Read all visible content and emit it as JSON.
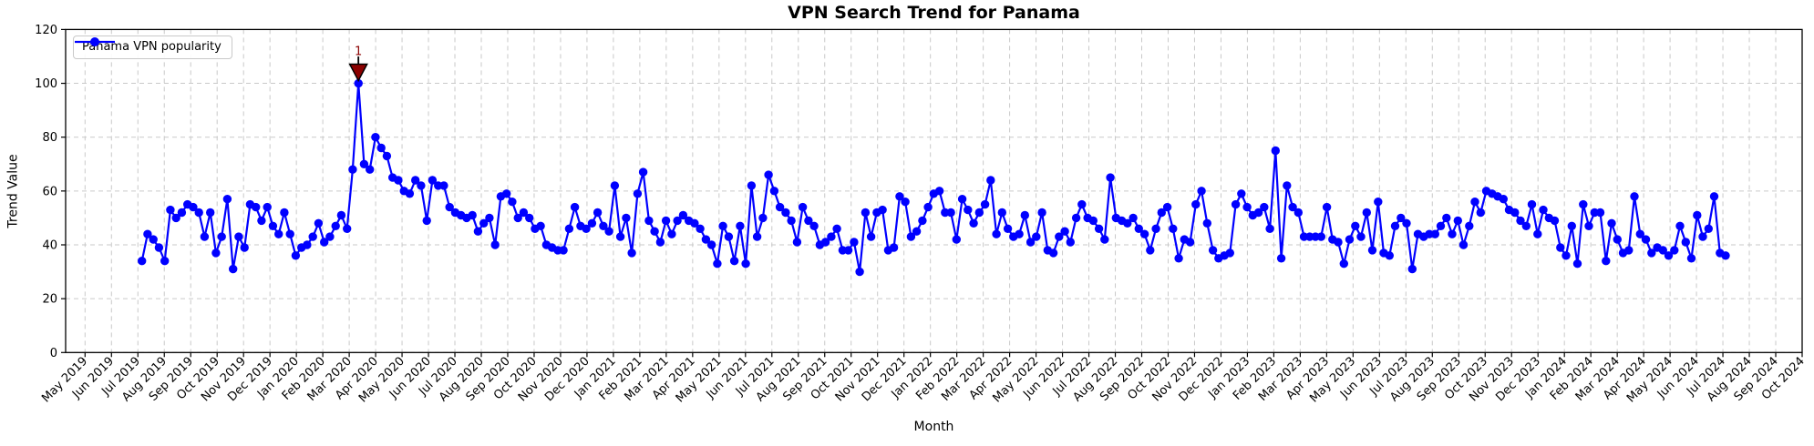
{
  "title": "VPN Search Trend for Panama",
  "axes": {
    "x_label": "Month",
    "y_label": "Trend Value"
  },
  "legend": {
    "label": "Panama VPN popularity"
  },
  "colors": {
    "line": "#0000ff",
    "annotation": "#8b0000",
    "annotation_edge": "#000000",
    "grid": "#c9c9c9",
    "spine": "#000000",
    "background": "#ffffff",
    "text": "#000000"
  },
  "chart_data": {
    "type": "line",
    "title": "VPN Search Trend for Panama",
    "xlabel": "Month",
    "ylabel": "Trend Value",
    "ylim": [
      0,
      120
    ],
    "y_ticks": [
      0,
      20,
      40,
      60,
      80,
      100,
      120
    ],
    "grid": true,
    "legend_position": "upper left",
    "x_tick_labels": [
      "May 2019",
      "Jun 2019",
      "Jul 2019",
      "Aug 2019",
      "Sep 2019",
      "Oct 2019",
      "Nov 2019",
      "Dec 2019",
      "Jan 2020",
      "Feb 2020",
      "Mar 2020",
      "Apr 2020",
      "May 2020",
      "Jun 2020",
      "Jul 2020",
      "Aug 2020",
      "Sep 2020",
      "Oct 2020",
      "Nov 2020",
      "Dec 2020",
      "Jan 2021",
      "Feb 2021",
      "Mar 2021",
      "Apr 2021",
      "May 2021",
      "Jun 2021",
      "Jul 2021",
      "Aug 2021",
      "Sep 2021",
      "Oct 2021",
      "Nov 2021",
      "Dec 2021",
      "Jan 2022",
      "Feb 2022",
      "Mar 2022",
      "Apr 2022",
      "May 2022",
      "Jun 2022",
      "Jul 2022",
      "Aug 2022",
      "Sep 2022",
      "Oct 2022",
      "Nov 2022",
      "Dec 2022",
      "Jan 2023",
      "Feb 2023",
      "Mar 2023",
      "Apr 2023",
      "May 2023",
      "Jun 2023",
      "Jul 2023",
      "Aug 2023",
      "Sep 2023",
      "Oct 2023",
      "Nov 2023",
      "Dec 2023",
      "Jan 2024",
      "Feb 2024",
      "Mar 2024",
      "Apr 2024",
      "May 2024",
      "Jun 2024",
      "Jul 2024",
      "Aug 2024",
      "Sep 2024",
      "Oct 2024"
    ],
    "series": [
      {
        "name": "Panama VPN popularity",
        "color": "#0000ff",
        "marker": "circle",
        "interval": "weekly",
        "first_point": "Jul 2019",
        "last_point": "Jul 2024",
        "values": [
          34,
          44,
          42,
          39,
          34,
          53,
          50,
          52,
          55,
          54,
          52,
          43,
          52,
          37,
          43,
          57,
          31,
          43,
          39,
          55,
          54,
          49,
          54,
          47,
          44,
          52,
          44,
          36,
          39,
          40,
          43,
          48,
          41,
          43,
          47,
          51,
          46,
          68,
          100,
          70,
          68,
          80,
          76,
          73,
          65,
          64,
          60,
          59,
          64,
          62,
          49,
          64,
          62,
          62,
          54,
          52,
          51,
          50,
          51,
          45,
          48,
          50,
          40,
          58,
          59,
          56,
          50,
          52,
          50,
          46,
          47,
          40,
          39,
          38,
          38,
          46,
          54,
          47,
          46,
          48,
          52,
          47,
          45,
          62,
          43,
          50,
          37,
          59,
          67,
          49,
          45,
          41,
          49,
          44,
          49,
          51,
          49,
          48,
          46,
          42,
          40,
          33,
          47,
          43,
          34,
          47,
          33,
          62,
          43,
          50,
          66,
          60,
          54,
          52,
          49,
          41,
          54,
          49,
          47,
          40,
          41,
          43,
          46,
          38,
          38,
          41,
          30,
          52,
          43,
          52,
          53,
          38,
          39,
          58,
          56,
          43,
          45,
          49,
          54,
          59,
          60,
          52,
          52,
          42,
          57,
          53,
          48,
          52,
          55,
          64,
          44,
          52,
          46,
          43,
          44,
          51,
          41,
          43,
          52,
          38,
          37,
          43,
          45,
          41,
          50,
          55,
          50,
          49,
          46,
          42,
          65,
          50,
          49,
          48,
          50,
          46,
          44,
          38,
          46,
          52,
          54,
          46,
          35,
          42,
          41,
          55,
          60,
          48,
          38,
          35,
          36,
          37,
          55,
          59,
          54,
          51,
          52,
          54,
          46,
          75,
          35,
          62,
          54,
          52,
          43,
          43,
          43,
          43,
          54,
          42,
          41,
          33,
          42,
          47,
          43,
          52,
          38,
          56,
          37,
          36,
          47,
          50,
          48,
          31,
          44,
          43,
          44,
          44,
          47,
          50,
          44,
          49,
          40,
          47,
          56,
          52,
          60,
          59,
          58,
          57,
          53,
          52,
          49,
          47,
          55,
          44,
          53,
          50,
          49,
          39,
          36,
          47,
          33,
          55,
          47,
          52,
          52,
          34,
          48,
          42,
          37,
          38,
          58,
          44,
          42,
          37,
          39,
          38,
          36,
          38,
          47,
          41,
          35,
          51,
          43,
          46,
          58,
          37,
          36
        ]
      }
    ],
    "annotation": {
      "label": "1",
      "at_value": 100,
      "marker": "triangle-down",
      "color": "#8b0000"
    }
  }
}
